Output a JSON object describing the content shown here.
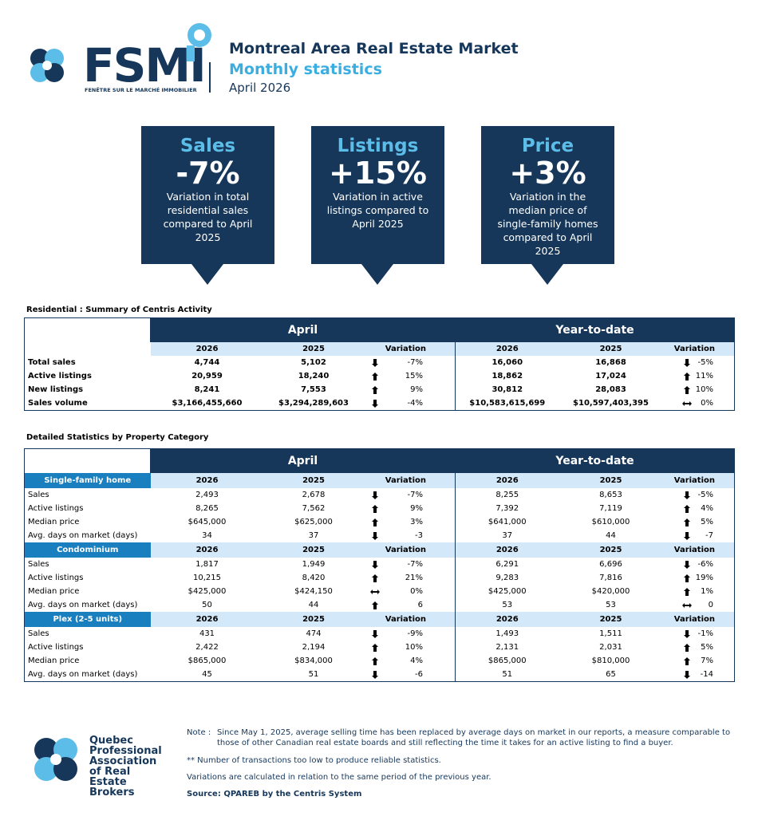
{
  "header": {
    "logo_text": "FSMI",
    "logo_subtext": "FENÊTRE SUR LE MARCHÉ IMMOBILIER",
    "title": "Montreal Area Real Estate Market",
    "subtitle": "Monthly statistics",
    "date": "April 2026"
  },
  "highlights": [
    {
      "label": "Sales",
      "value": "-7%",
      "description": "Variation in total residential sales compared to April 2025"
    },
    {
      "label": "Listings",
      "value": "+15%",
      "description": "Variation in active listings compared to April 2025"
    },
    {
      "label": "Price",
      "value": "+3%",
      "description": "Variation in the median price of single-family homes compared to April 2025"
    }
  ],
  "summary": {
    "title": "Residential : Summary of Centris Activity",
    "groups": [
      "April",
      "Year-to-date"
    ],
    "columns": [
      "2026",
      "2025",
      "Variation"
    ],
    "rows": [
      {
        "label": "Total sales",
        "values": [
          "4,744",
          "5,102",
          "-7%",
          "16,060",
          "16,868",
          "-5%"
        ]
      },
      {
        "label": "Active listings",
        "values": [
          "20,959",
          "18,240",
          "15%",
          "18,862",
          "17,024",
          "11%"
        ]
      },
      {
        "label": "New listings",
        "values": [
          "8,241",
          "7,553",
          "9%",
          "30,812",
          "28,083",
          "10%"
        ]
      },
      {
        "label": "Sales volume",
        "values": [
          "$3,166,455,660",
          "$3,294,289,603",
          "-4%",
          "$10,583,615,699",
          "$10,597,403,395",
          "0%"
        ]
      }
    ]
  },
  "detailed": {
    "title": "Detailed Statistics by Property Category",
    "groups": [
      "April",
      "Year-to-date"
    ],
    "columns": [
      "2026",
      "2025",
      "Variation"
    ],
    "sections": [
      {
        "name": "Single-family home",
        "rows": [
          {
            "label": "Sales",
            "values": [
              "2,493",
              "2,678",
              "-7%",
              "8,255",
              "8,653",
              "-5%"
            ]
          },
          {
            "label": "Active listings",
            "values": [
              "8,265",
              "7,562",
              "9%",
              "7,392",
              "7,119",
              "4%"
            ]
          },
          {
            "label": "Median price",
            "values": [
              "$645,000",
              "$625,000",
              "3%",
              "$641,000",
              "$610,000",
              "5%"
            ]
          },
          {
            "label": "Avg. days on market (days)",
            "values": [
              "34",
              "37",
              "-3",
              "37",
              "44",
              "-7"
            ]
          }
        ]
      },
      {
        "name": "Condominium",
        "rows": [
          {
            "label": "Sales",
            "values": [
              "1,817",
              "1,949",
              "-7%",
              "6,291",
              "6,696",
              "-6%"
            ]
          },
          {
            "label": "Active listings",
            "values": [
              "10,215",
              "8,420",
              "21%",
              "9,283",
              "7,816",
              "19%"
            ]
          },
          {
            "label": "Median price",
            "values": [
              "$425,000",
              "$424,150",
              "0%",
              "$425,000",
              "$420,000",
              "1%"
            ]
          },
          {
            "label": "Avg. days on market (days)",
            "values": [
              "50",
              "44",
              "6",
              "53",
              "53",
              "0"
            ]
          }
        ]
      },
      {
        "name": "Plex (2-5 units)",
        "rows": [
          {
            "label": "Sales",
            "values": [
              "431",
              "474",
              "-9%",
              "1,493",
              "1,511",
              "-1%"
            ]
          },
          {
            "label": "Active listings",
            "values": [
              "2,422",
              "2,194",
              "10%",
              "2,131",
              "2,031",
              "5%"
            ]
          },
          {
            "label": "Median price",
            "values": [
              "$865,000",
              "$834,000",
              "4%",
              "$865,000",
              "$810,000",
              "7%"
            ]
          },
          {
            "label": "Avg. days on market (days)",
            "values": [
              "45",
              "51",
              "-6",
              "51",
              "65",
              "-14"
            ]
          }
        ]
      }
    ]
  },
  "footer": {
    "org_name": "Quebec Professional Association of Real Estate Brokers",
    "note_label": "Note :",
    "note": "Since May 1, 2025, average selling time has been replaced by average days on market in our reports, a measure comparable to those of other Canadian real estate boards and still reflecting the time it takes for an active listing to find a buyer.",
    "footnote": "**  Number of transactions too low to produce reliable statistics.",
    "variation_note": "Variations are calculated in relation to the same period of the previous year.",
    "source": "Source: QPAREB by the Centris System"
  }
}
